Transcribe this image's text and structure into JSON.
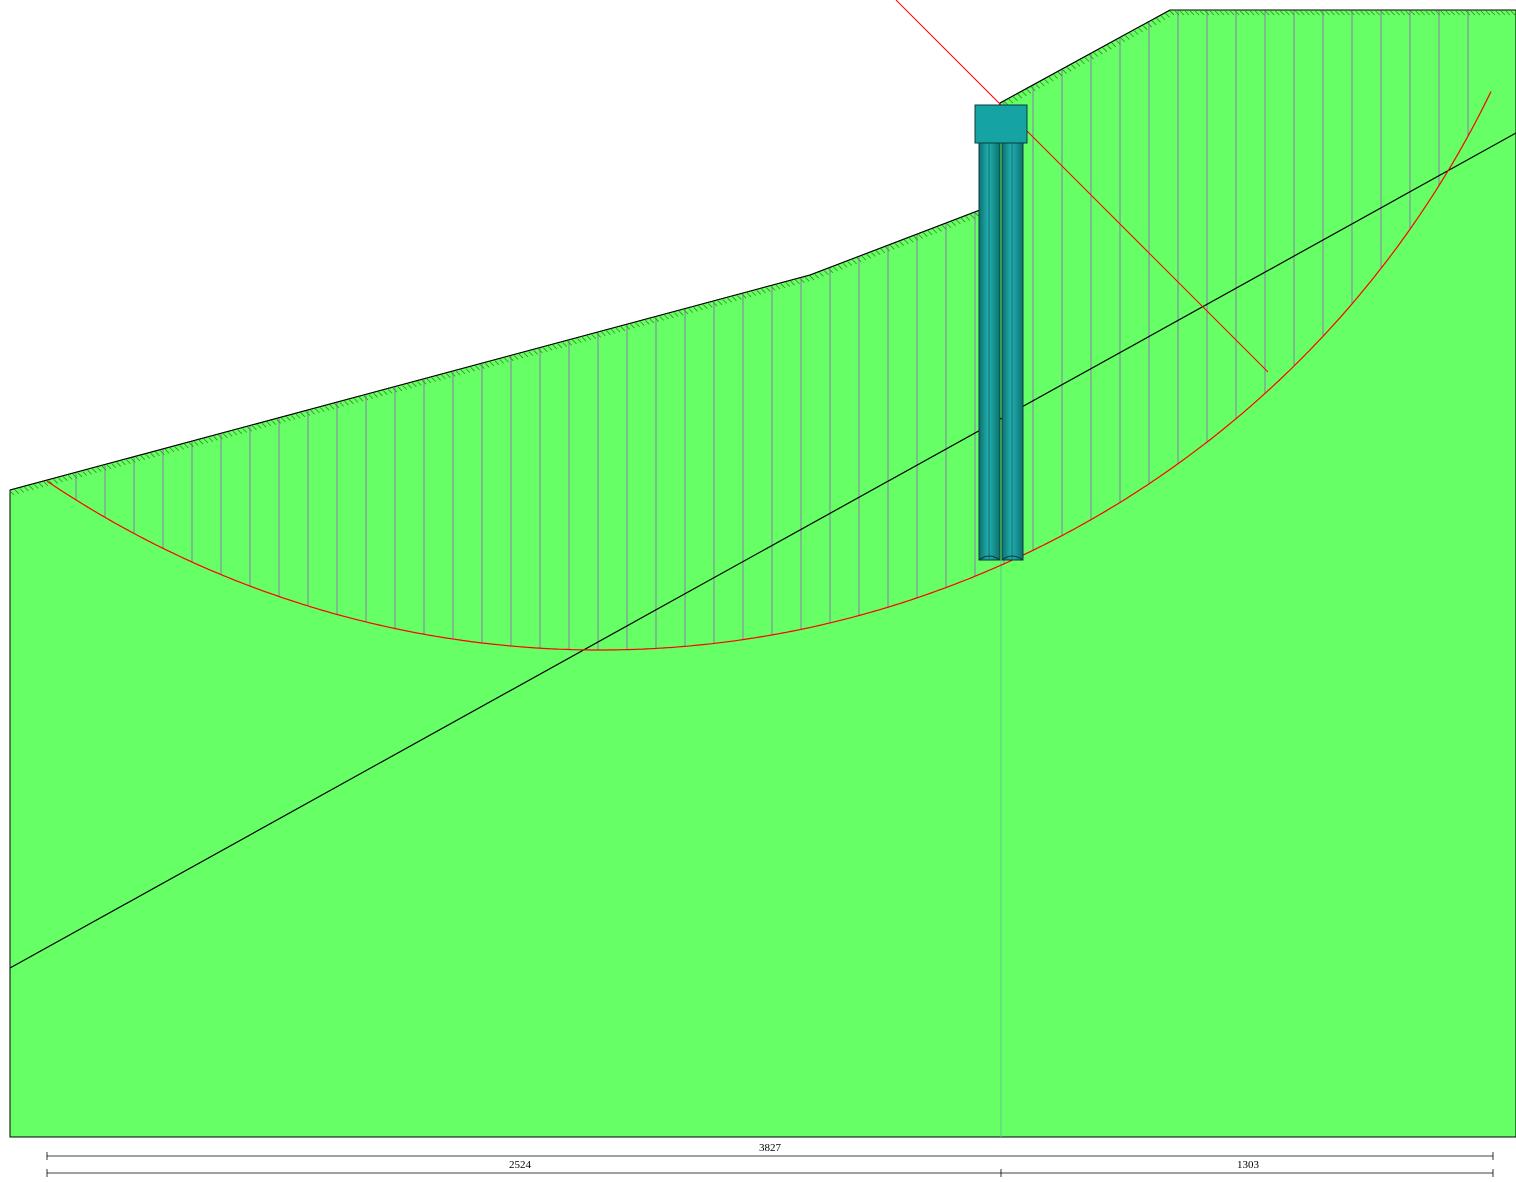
{
  "diagram": {
    "colors": {
      "soil": "#66ff66",
      "soil_outline": "#000000",
      "hatch": "#3a8a1a",
      "slice_line": "#8a7fa8",
      "slip_surface": "#ff0000",
      "water_line": "#000000",
      "pile": "#1a9b9b",
      "pile_cap": "#15a3a3",
      "background": "#ffffff"
    },
    "dimensions": {
      "total": "3827",
      "left_segment": "2524",
      "right_segment": "1303"
    }
  }
}
